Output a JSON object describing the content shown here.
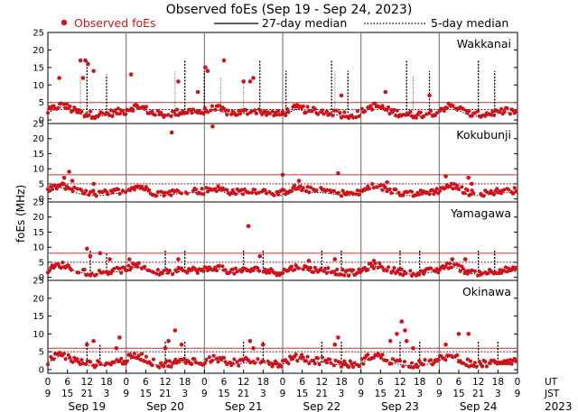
{
  "chart_data": {
    "type": "scatter",
    "title": "Observed foEs (Sep 19 - Sep 24, 2023)",
    "ylabel": "foEs (MHz)",
    "ylim": [
      -1,
      25
    ],
    "yticks": [
      0,
      5,
      10,
      15,
      20,
      25
    ],
    "xlim_hours_ut": [
      0,
      144
    ],
    "legend": {
      "observed": "Observed foEs",
      "median27": "27-day median",
      "median5": "5-day median"
    },
    "colors": {
      "observed": "#d0121b",
      "median27": "#000000",
      "median5": "#000000",
      "threshold_red": "#cc3333",
      "threshold_brown": "#8b1a1a",
      "divider": "#808080"
    },
    "x_axis": {
      "ut_label": "UT",
      "jst_label": "JST",
      "ut_ticks": [
        "0",
        "6",
        "12",
        "18",
        "0",
        "6",
        "12",
        "18",
        "0",
        "6",
        "12",
        "18",
        "0",
        "6",
        "12",
        "18",
        "0",
        "6",
        "12",
        "18",
        "0",
        "6",
        "12",
        "18",
        "0"
      ],
      "jst_ticks": [
        "9",
        "15",
        "21",
        "3",
        "9",
        "15",
        "21",
        "3",
        "9",
        "15",
        "21",
        "3",
        "9",
        "15",
        "21",
        "3",
        "9",
        "15",
        "21",
        "3",
        "9",
        "15",
        "21",
        "3",
        "9"
      ],
      "days": [
        "Sep 19",
        "Sep 20",
        "Sep 21",
        "Sep 22",
        "Sep 23",
        "Sep 24"
      ],
      "year": "2023"
    },
    "stations": [
      {
        "name": "Wakkanai",
        "threshold_red": 5,
        "threshold_brown": 3,
        "outliers": [
          [
            3.5,
            12
          ],
          [
            10,
            17
          ],
          [
            10.8,
            12
          ],
          [
            11.5,
            17
          ],
          [
            12.3,
            16
          ],
          [
            14,
            14
          ],
          [
            25.5,
            13
          ],
          [
            40,
            11
          ],
          [
            46,
            8
          ],
          [
            48.3,
            15
          ],
          [
            49,
            14
          ],
          [
            54,
            17
          ],
          [
            60,
            11
          ],
          [
            62,
            11
          ],
          [
            63,
            12
          ],
          [
            90,
            7
          ],
          [
            103.5,
            8
          ],
          [
            117,
            7
          ]
        ],
        "spikes27": [
          [
            12,
            17
          ],
          [
            18,
            13
          ],
          [
            42,
            17
          ],
          [
            48,
            14
          ],
          [
            65,
            17
          ],
          [
            73,
            14
          ],
          [
            87,
            17
          ],
          [
            92,
            14
          ],
          [
            110,
            17
          ],
          [
            117,
            14
          ],
          [
            132,
            17
          ],
          [
            137,
            14
          ]
        ],
        "spikes5": [
          [
            10,
            13
          ],
          [
            39,
            14
          ],
          [
            53,
            12
          ],
          [
            60,
            11
          ],
          [
            88,
            14
          ],
          [
            112,
            13
          ]
        ]
      },
      {
        "name": "Kokubunji",
        "threshold_red": 8,
        "threshold_brown": 5,
        "outliers": [
          [
            5,
            7
          ],
          [
            6.5,
            9
          ],
          [
            7.5,
            6
          ],
          [
            14,
            5
          ],
          [
            38,
            22
          ],
          [
            50.5,
            24
          ],
          [
            72,
            8
          ],
          [
            77,
            6
          ],
          [
            89,
            8.5
          ],
          [
            104,
            5.5
          ],
          [
            122,
            7.5
          ],
          [
            129,
            7
          ],
          [
            130,
            5
          ]
        ],
        "spikes27": [],
        "spikes5": []
      },
      {
        "name": "Yamagawa",
        "threshold_red": 8,
        "threshold_brown": 5,
        "outliers": [
          [
            12,
            9.5
          ],
          [
            13,
            7
          ],
          [
            16,
            8
          ],
          [
            19,
            6
          ],
          [
            25,
            6
          ],
          [
            40,
            6
          ],
          [
            61.5,
            17
          ],
          [
            65,
            7
          ],
          [
            80,
            5.5
          ],
          [
            88,
            6
          ],
          [
            100,
            5.5
          ],
          [
            124,
            6
          ],
          [
            128,
            6
          ]
        ],
        "spikes27": [
          [
            13,
            9
          ],
          [
            18,
            8
          ],
          [
            36,
            9
          ],
          [
            42,
            9
          ],
          [
            60,
            9
          ],
          [
            66,
            9
          ],
          [
            84,
            9
          ],
          [
            90,
            9
          ],
          [
            108,
            9
          ],
          [
            114,
            9
          ],
          [
            132,
            9
          ],
          [
            137,
            9
          ]
        ],
        "spikes5": []
      },
      {
        "name": "Okinawa",
        "threshold_red": 6,
        "threshold_brown": 5,
        "outliers": [
          [
            12,
            7
          ],
          [
            14,
            8
          ],
          [
            21,
            6
          ],
          [
            22,
            9
          ],
          [
            36,
            6
          ],
          [
            37,
            8
          ],
          [
            39,
            11
          ],
          [
            41,
            7
          ],
          [
            62,
            8
          ],
          [
            63,
            6
          ],
          [
            66,
            7
          ],
          [
            88,
            7
          ],
          [
            89,
            9
          ],
          [
            105,
            8
          ],
          [
            107,
            10
          ],
          [
            108.5,
            13.5
          ],
          [
            109.5,
            11
          ],
          [
            110,
            8
          ],
          [
            112,
            6
          ],
          [
            122,
            7
          ],
          [
            126,
            10
          ],
          [
            129,
            10
          ]
        ],
        "spikes27": [
          [
            12,
            8
          ],
          [
            16,
            7
          ],
          [
            36,
            8
          ],
          [
            42,
            8
          ],
          [
            60,
            8
          ],
          [
            66,
            8
          ],
          [
            84,
            8
          ],
          [
            90,
            8
          ],
          [
            108,
            8
          ],
          [
            114,
            8
          ],
          [
            132,
            8
          ],
          [
            138,
            8
          ]
        ],
        "spikes5": []
      }
    ]
  }
}
